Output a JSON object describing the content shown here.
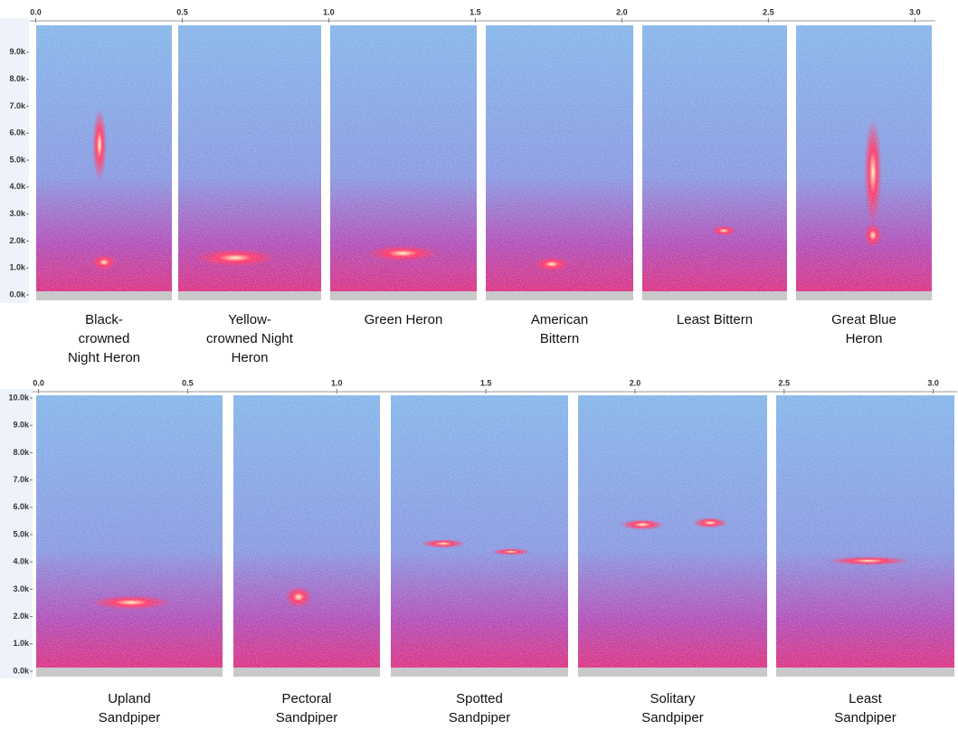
{
  "chart_data": [
    {
      "type": "spectrogram",
      "xlim": [
        -0.02,
        3.07
      ],
      "xticks": [
        {
          "value": 0,
          "label": "0.0"
        },
        {
          "value": 0.5,
          "label": "0.5"
        },
        {
          "value": 1,
          "label": "1.0"
        },
        {
          "value": 1.5,
          "label": "1.5"
        },
        {
          "value": 2,
          "label": "2.0"
        },
        {
          "value": 2.5,
          "label": "2.5"
        },
        {
          "value": 3,
          "label": "3.0"
        }
      ],
      "ylim": [
        -200,
        10000
      ],
      "yticks": [
        {
          "value": 0,
          "label": "0.0k"
        },
        {
          "value": 1000,
          "label": "1.0k"
        },
        {
          "value": 2000,
          "label": "2.0k"
        },
        {
          "value": 3000,
          "label": "3.0k"
        },
        {
          "value": 4000,
          "label": "4.0k"
        },
        {
          "value": 5000,
          "label": "5.0k"
        },
        {
          "value": 6000,
          "label": "6.0k"
        },
        {
          "value": 7000,
          "label": "7.0k"
        },
        {
          "value": 8000,
          "label": "8.0k"
        },
        {
          "value": 9000,
          "label": "9.0k"
        }
      ],
      "categories": [
        "Black-\ncrowned\nNight Heron",
        "Yellow-\ncrowned Night\nHeron",
        "Green Heron",
        "American\nBittern",
        "Least Bittern",
        "Great Blue\nHeron"
      ]
    },
    {
      "type": "spectrogram",
      "xlim": [
        -0.02,
        3.08
      ],
      "xticks": [
        {
          "value": 0,
          "label": "0.0"
        },
        {
          "value": 0.5,
          "label": "0.5"
        },
        {
          "value": 1,
          "label": "1.0"
        },
        {
          "value": 1.5,
          "label": "1.5"
        },
        {
          "value": 2,
          "label": "2.0"
        },
        {
          "value": 2.5,
          "label": "2.5"
        },
        {
          "value": 3,
          "label": "3.0"
        }
      ],
      "ylim": [
        -200,
        10100
      ],
      "yticks": [
        {
          "value": 0,
          "label": "0.0k"
        },
        {
          "value": 1000,
          "label": "1.0k"
        },
        {
          "value": 2000,
          "label": "2.0k"
        },
        {
          "value": 3000,
          "label": "3.0k"
        },
        {
          "value": 4000,
          "label": "4.0k"
        },
        {
          "value": 5000,
          "label": "5.0k"
        },
        {
          "value": 6000,
          "label": "6.0k"
        },
        {
          "value": 7000,
          "label": "7.0k"
        },
        {
          "value": 8000,
          "label": "8.0k"
        },
        {
          "value": 9000,
          "label": "9.0k"
        },
        {
          "value": 10000,
          "label": "10.0k"
        }
      ],
      "categories": [
        "Upland\nSandpiper",
        "Pectoral\nSandpiper",
        "Spotted\nSandpiper",
        "Solitary\nSandpiper",
        "Least\nSandpiper"
      ]
    }
  ]
}
